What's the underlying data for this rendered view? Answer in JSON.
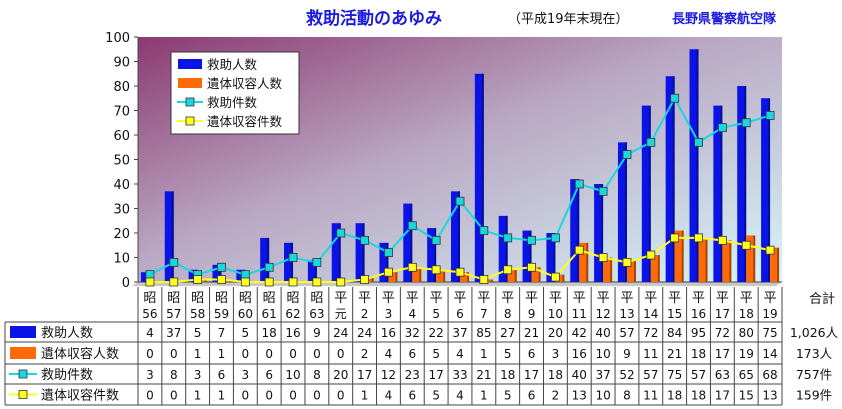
{
  "header": {
    "title": "救助活動のあゆみ",
    "subtitle": "（平成19年末現在）",
    "org": "長野県警察航空隊"
  },
  "chart_data": {
    "type": "bar",
    "categories": [
      [
        "昭",
        "56"
      ],
      [
        "昭",
        "57"
      ],
      [
        "昭",
        "58"
      ],
      [
        "昭",
        "59"
      ],
      [
        "昭",
        "60"
      ],
      [
        "昭",
        "61"
      ],
      [
        "昭",
        "62"
      ],
      [
        "昭",
        "63"
      ],
      [
        "平",
        "元"
      ],
      [
        "平",
        "2"
      ],
      [
        "平",
        "3"
      ],
      [
        "平",
        "4"
      ],
      [
        "平",
        "5"
      ],
      [
        "平",
        "6"
      ],
      [
        "平",
        "7"
      ],
      [
        "平",
        "8"
      ],
      [
        "平",
        "9"
      ],
      [
        "平",
        "10"
      ],
      [
        "平",
        "11"
      ],
      [
        "平",
        "12"
      ],
      [
        "平",
        "13"
      ],
      [
        "平",
        "14"
      ],
      [
        "平",
        "15"
      ],
      [
        "平",
        "16"
      ],
      [
        "平",
        "17"
      ],
      [
        "平",
        "18"
      ],
      [
        "平",
        "19"
      ]
    ],
    "series": [
      {
        "name": "救助人数",
        "kind": "bar",
        "color": "#0a14e6",
        "values": [
          4,
          37,
          5,
          7,
          5,
          18,
          16,
          9,
          24,
          24,
          16,
          32,
          22,
          37,
          85,
          27,
          21,
          20,
          42,
          40,
          57,
          72,
          84,
          95,
          72,
          80,
          75
        ],
        "total": "1,026人"
      },
      {
        "name": "遺体収容人数",
        "kind": "bar",
        "color": "#ff6a08",
        "values": [
          0,
          0,
          1,
          1,
          0,
          0,
          0,
          0,
          0,
          2,
          4,
          6,
          5,
          4,
          1,
          5,
          6,
          3,
          16,
          10,
          9,
          11,
          21,
          18,
          17,
          19,
          14
        ],
        "total": "173人"
      },
      {
        "name": "救助件数",
        "kind": "line",
        "color": "#19d6e0",
        "values": [
          3,
          8,
          3,
          6,
          3,
          6,
          10,
          8,
          20,
          17,
          12,
          23,
          17,
          33,
          21,
          18,
          17,
          18,
          40,
          37,
          52,
          57,
          75,
          57,
          63,
          65,
          68
        ],
        "total": "757件"
      },
      {
        "name": "遺体収容件数",
        "kind": "line",
        "color": "#ffff22",
        "values": [
          0,
          0,
          1,
          1,
          0,
          0,
          0,
          0,
          0,
          1,
          4,
          6,
          5,
          4,
          1,
          5,
          6,
          2,
          13,
          10,
          8,
          11,
          18,
          18,
          17,
          15,
          13
        ],
        "total": "159件"
      }
    ],
    "ylim": [
      0,
      100
    ],
    "yticks": [
      0,
      10,
      20,
      30,
      40,
      50,
      60,
      70,
      80,
      90,
      100
    ],
    "total_header": "合計",
    "legend_position": "top-left",
    "grid": false
  }
}
